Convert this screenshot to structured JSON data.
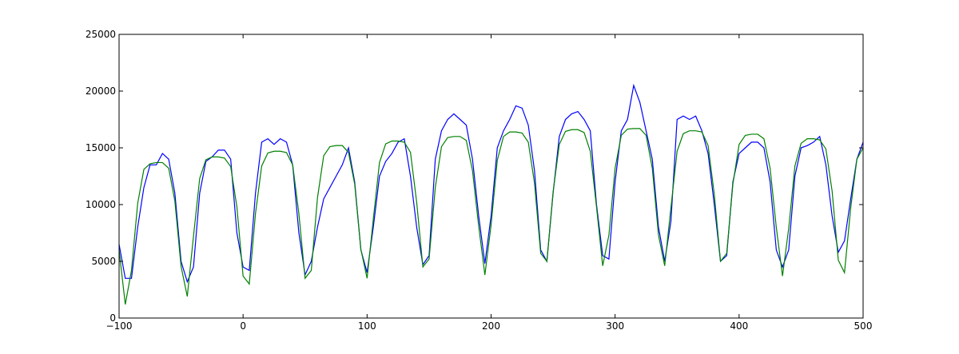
{
  "chart_data": {
    "type": "line",
    "x": [
      -100,
      -95,
      -90,
      -85,
      -80,
      -75,
      -70,
      -65,
      -60,
      -55,
      -50,
      -45,
      -40,
      -35,
      -30,
      -25,
      -20,
      -15,
      -10,
      -5,
      0,
      5,
      10,
      15,
      20,
      25,
      30,
      35,
      40,
      45,
      50,
      55,
      60,
      65,
      70,
      75,
      80,
      85,
      90,
      95,
      100,
      105,
      110,
      115,
      120,
      125,
      130,
      135,
      140,
      145,
      150,
      155,
      160,
      165,
      170,
      175,
      180,
      185,
      190,
      195,
      200,
      205,
      210,
      215,
      220,
      225,
      230,
      235,
      240,
      245,
      250,
      255,
      260,
      265,
      270,
      275,
      280,
      285,
      290,
      295,
      300,
      305,
      310,
      315,
      320,
      325,
      330,
      335,
      340,
      345,
      350,
      355,
      360,
      365,
      370,
      375,
      380,
      385,
      390,
      395,
      400,
      405,
      410,
      415,
      420,
      425,
      430,
      435,
      440,
      445,
      450,
      455,
      460,
      465,
      470,
      475,
      480,
      485,
      490,
      495,
      500
    ],
    "series": [
      {
        "color": "#0000ff",
        "values": [
          6500,
          3500,
          3500,
          8000,
          11500,
          13500,
          13500,
          14500,
          14000,
          11000,
          5000,
          3200,
          4500,
          11000,
          13800,
          14200,
          14800,
          14800,
          14000,
          7500,
          4500,
          4200,
          11000,
          15500,
          15800,
          15300,
          15800,
          15500,
          13500,
          7500,
          3800,
          5000,
          8000,
          10500,
          11500,
          12500,
          13500,
          15000,
          12000,
          6000,
          4000,
          8000,
          12500,
          13800,
          14500,
          15500,
          15800,
          12500,
          8000,
          4700,
          5500,
          14000,
          16500,
          17500,
          18000,
          17500,
          17000,
          14000,
          9000,
          4800,
          9000,
          15000,
          16500,
          17500,
          18700,
          18500,
          17000,
          13000,
          6000,
          5000,
          11000,
          16000,
          17500,
          18000,
          18200,
          17500,
          16500,
          10000,
          5500,
          5200,
          12000,
          16500,
          17500,
          20500,
          19000,
          16500,
          14000,
          8000,
          5000,
          8500,
          17500,
          17800,
          17500,
          17800,
          16500,
          14500,
          10000,
          5000,
          5500,
          12000,
          14500,
          15000,
          15500,
          15500,
          15000,
          12000,
          6000,
          4500,
          6000,
          12500,
          15000,
          15200,
          15500,
          16000,
          13500,
          9000,
          5800,
          6800,
          10500,
          14000,
          15500
        ]
      },
      {
        "color": "#008000",
        "values": [
          6000,
          1200,
          4200,
          10100,
          13100,
          13600,
          13700,
          13700,
          13200,
          10300,
          4550,
          1900,
          7200,
          12300,
          13950,
          14200,
          14200,
          14100,
          13350,
          9800,
          3700,
          3000,
          9200,
          13400,
          14550,
          14700,
          14700,
          14580,
          13500,
          9200,
          3500,
          4200,
          10600,
          14300,
          15100,
          15200,
          15200,
          14600,
          11800,
          6050,
          3500,
          8700,
          13700,
          15350,
          15600,
          15600,
          15500,
          14600,
          10200,
          4500,
          5200,
          11500,
          15100,
          15900,
          16000,
          16000,
          15650,
          13000,
          8100,
          3800,
          8200,
          13900,
          16000,
          16400,
          16400,
          16300,
          15500,
          11900,
          5700,
          5000,
          11100,
          15300,
          16450,
          16600,
          16600,
          16350,
          14700,
          9800,
          4600,
          7300,
          13200,
          16100,
          16650,
          16700,
          16700,
          16100,
          13200,
          7300,
          4600,
          9700,
          14700,
          16250,
          16500,
          16500,
          16400,
          15200,
          10900,
          5000,
          5700,
          11800,
          15300,
          16100,
          16200,
          16200,
          15800,
          13200,
          8000,
          3700,
          7900,
          13400,
          15400,
          15800,
          15800,
          15700,
          14900,
          11200,
          5100,
          4000,
          9700,
          14000,
          15000
        ]
      }
    ],
    "xlim": [
      -100,
      500
    ],
    "xticks": [
      {
        "value": -100,
        "label": "−100"
      },
      0,
      100,
      200,
      300,
      400,
      500
    ],
    "ylim": [
      0,
      25000
    ],
    "yticks": [
      0,
      5000,
      10000,
      15000,
      20000,
      25000
    ]
  }
}
